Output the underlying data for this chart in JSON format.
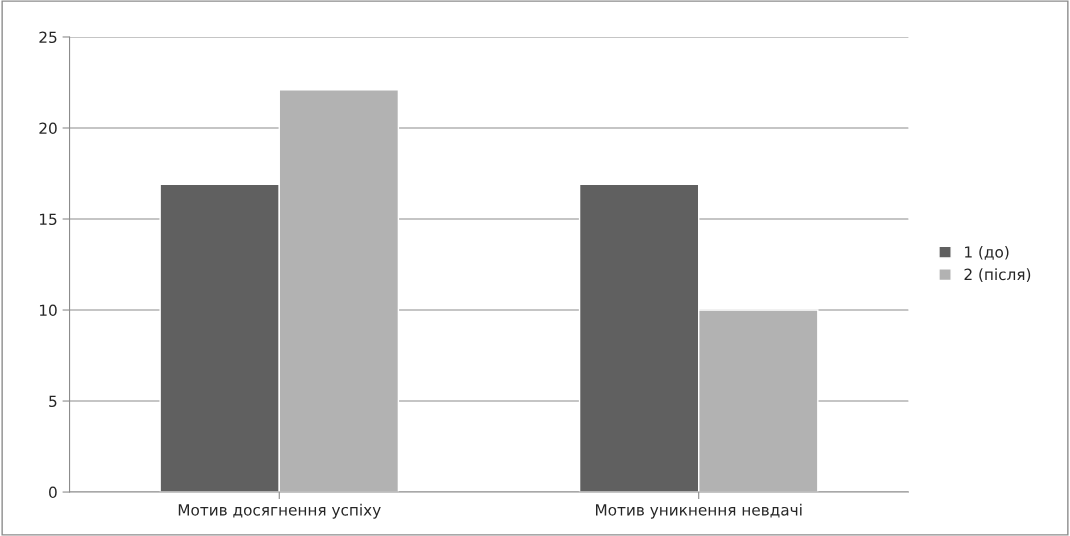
{
  "chart_data": {
    "type": "bar",
    "categories": [
      "Мотив досягнення успіху",
      "Мотив уникнення невдачі"
    ],
    "series": [
      {
        "name": "1 (до)",
        "color": "#606060",
        "values": [
          16.9,
          16.9
        ]
      },
      {
        "name": "2 (після)",
        "color": "#b2b2b2",
        "values": [
          22.1,
          10
        ]
      }
    ],
    "ylim": [
      0,
      25
    ],
    "yticks": [
      0,
      5,
      10,
      15,
      20,
      25
    ],
    "grid": "y",
    "legend": "right"
  }
}
